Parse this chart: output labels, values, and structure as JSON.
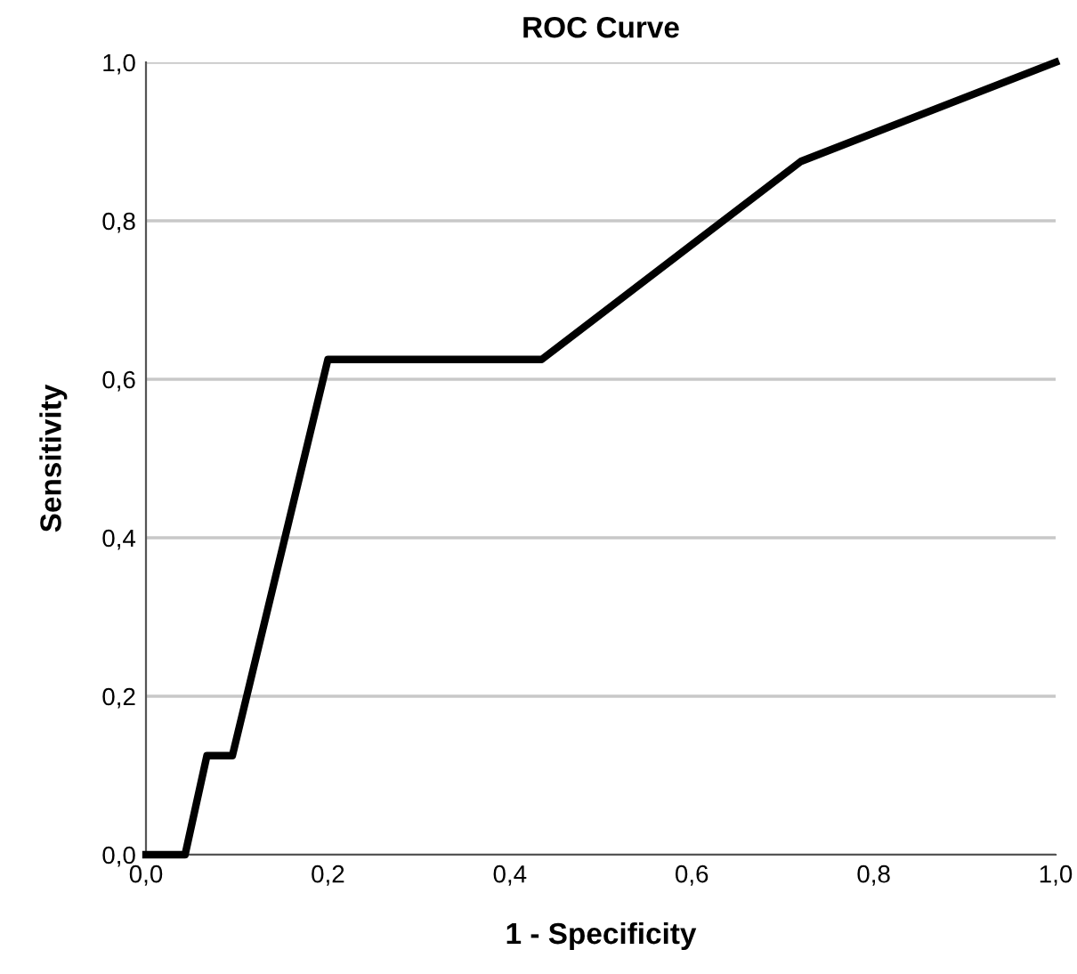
{
  "chart_data": {
    "type": "line",
    "title": "ROC Curve",
    "xlabel": "1 - Specificity",
    "ylabel": "Sensitivity",
    "x": [
      0,
      0.043,
      0.067,
      0.095,
      0.2,
      0.435,
      0.72,
      1
    ],
    "series": [
      {
        "color": "#000000",
        "values": [
          0,
          0,
          0.125,
          0.125,
          0.625,
          0.625,
          0.875,
          1
        ]
      }
    ],
    "xlim": [
      0,
      1
    ],
    "ylim": [
      0,
      1
    ],
    "xticks": [
      {
        "value": 0,
        "label": "0,0"
      },
      {
        "value": 0.2,
        "label": "0,2"
      },
      {
        "value": 0.4,
        "label": "0,4"
      },
      {
        "value": 0.6,
        "label": "0,6"
      },
      {
        "value": 0.8,
        "label": "0,8"
      },
      {
        "value": 1,
        "label": "1,0"
      }
    ],
    "yticks": [
      {
        "value": 0,
        "label": "0,0"
      },
      {
        "value": 0.2,
        "label": "0,2"
      },
      {
        "value": 0.4,
        "label": "0,4"
      },
      {
        "value": 0.6,
        "label": "0,6"
      },
      {
        "value": 0.8,
        "label": "0,8"
      },
      {
        "value": 1,
        "label": "1,0"
      }
    ],
    "grid": "y",
    "marker": "none",
    "line_style": "solid",
    "legend": false
  }
}
